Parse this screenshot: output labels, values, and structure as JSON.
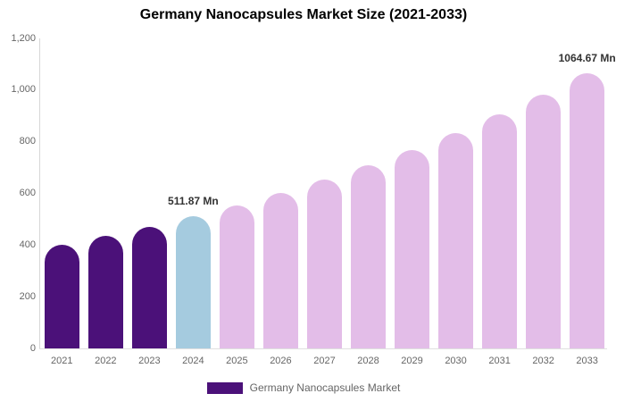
{
  "chart": {
    "title": "Germany Nanocapsules Market Size (2021-2033)"
  },
  "legend": {
    "label": "Germany Nanocapsules Market",
    "swatch_color": "#4B1179"
  },
  "chart_data": {
    "type": "bar",
    "title": "Germany Nanocapsules Market Size (2021-2033)",
    "unit": "Mn",
    "categories": [
      "2021",
      "2022",
      "2023",
      "2024",
      "2025",
      "2026",
      "2027",
      "2028",
      "2029",
      "2030",
      "2031",
      "2032",
      "2033"
    ],
    "values": [
      401,
      435,
      472,
      511.87,
      555,
      602,
      654,
      709,
      769,
      834,
      905,
      982,
      1064.67
    ],
    "segments": [
      "historical",
      "historical",
      "historical",
      "current",
      "forecast",
      "forecast",
      "forecast",
      "forecast",
      "forecast",
      "forecast",
      "forecast",
      "forecast",
      "forecast"
    ],
    "colors": {
      "historical": "#4B1179",
      "current": "#A5CBDF",
      "forecast": "#E3BDE8"
    },
    "data_labels": [
      {
        "category": "2024",
        "text": "511.87 Mn"
      },
      {
        "category": "2033",
        "text": "1064.67 Mn"
      }
    ],
    "ylim": [
      0,
      1200
    ],
    "ytick_labels": [
      "0",
      "200",
      "400",
      "600",
      "800",
      "1,000",
      "1,200"
    ],
    "grid": false,
    "legend_position": "bottom",
    "legend_entries": [
      "Germany Nanocapsules Market"
    ],
    "xlabel": "",
    "ylabel": ""
  }
}
